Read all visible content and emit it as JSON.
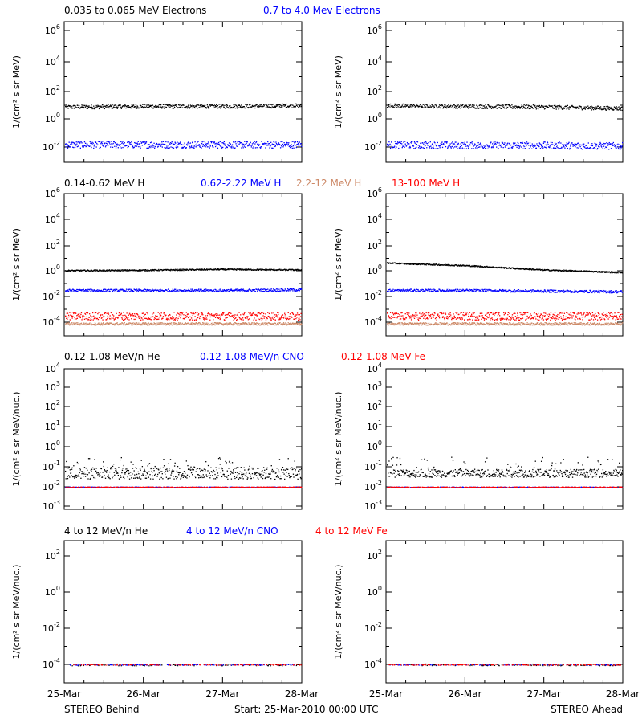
{
  "colors": {
    "black": "#000000",
    "blue": "#0000ff",
    "tan": "#cc8866",
    "red": "#ff0000"
  },
  "footer": {
    "left": "STEREO Behind",
    "center": "Start: 25-Mar-2010 00:00 UTC",
    "right": "STEREO Ahead"
  },
  "xaxis": {
    "ticks": [
      "25-Mar",
      "26-Mar",
      "27-Mar",
      "28-Mar"
    ]
  },
  "rows": [
    {
      "id": "electrons",
      "ylabel": "1/(cm² s sr MeV)",
      "titles": [
        {
          "text": "0.035 to 0.065 MeV Electrons",
          "color": "black"
        },
        {
          "text": "0.7 to 4.0 Mev Electrons",
          "color": "blue"
        }
      ],
      "yticks": [
        {
          "base": "10",
          "exp": "6",
          "v": 6
        },
        {
          "base": "10",
          "exp": "4",
          "v": 4
        },
        {
          "base": "10",
          "exp": "2",
          "v": 2
        },
        {
          "base": "10",
          "exp": "0",
          "v": 0
        },
        {
          "base": "10",
          "exp": "-2",
          "v": -2
        }
      ]
    },
    {
      "id": "protons",
      "ylabel": "1/(cm² s sr MeV)",
      "titles": [
        {
          "text": "0.14-0.62 MeV H",
          "color": "black"
        },
        {
          "text": "0.62-2.22 MeV H",
          "color": "blue"
        },
        {
          "text": "2.2-12 MeV H",
          "color": "tan"
        },
        {
          "text": "13-100 MeV H",
          "color": "red"
        }
      ],
      "yticks": [
        {
          "base": "10",
          "exp": "6",
          "v": 6
        },
        {
          "base": "10",
          "exp": "4",
          "v": 4
        },
        {
          "base": "10",
          "exp": "2",
          "v": 2
        },
        {
          "base": "10",
          "exp": "0",
          "v": 0
        },
        {
          "base": "10",
          "exp": "-2",
          "v": -2
        },
        {
          "base": "10",
          "exp": "-4",
          "v": -4
        }
      ]
    },
    {
      "id": "heavy_low",
      "ylabel": "1/(cm² s sr MeV/nuc.)",
      "titles": [
        {
          "text": "0.12-1.08 MeV/n He",
          "color": "black"
        },
        {
          "text": "0.12-1.08 MeV/n CNO",
          "color": "blue"
        },
        {
          "text": "0.12-1.08 MeV Fe",
          "color": "red"
        }
      ],
      "yticks": [
        {
          "base": "10",
          "exp": "4",
          "v": 4
        },
        {
          "base": "10",
          "exp": "3",
          "v": 3
        },
        {
          "base": "10",
          "exp": "2",
          "v": 2
        },
        {
          "base": "10",
          "exp": "1",
          "v": 1
        },
        {
          "base": "10",
          "exp": "0",
          "v": 0
        },
        {
          "base": "10",
          "exp": "-1",
          "v": -1
        },
        {
          "base": "10",
          "exp": "-2",
          "v": -2
        },
        {
          "base": "10",
          "exp": "-3",
          "v": -3
        }
      ]
    },
    {
      "id": "heavy_high",
      "ylabel": "1/(cm² s sr MeV/nuc.)",
      "titles": [
        {
          "text": "4 to 12 MeV/n He",
          "color": "black"
        },
        {
          "text": "4 to 12 MeV/n CNO",
          "color": "blue"
        },
        {
          "text": "4 to 12 MeV Fe",
          "color": "red"
        }
      ],
      "yticks": [
        {
          "base": "10",
          "exp": "2",
          "v": 2
        },
        {
          "base": "10",
          "exp": "0",
          "v": 0
        },
        {
          "base": "10",
          "exp": "-2",
          "v": -2
        },
        {
          "base": "10",
          "exp": "-4",
          "v": -4
        }
      ]
    }
  ],
  "chart_data": [
    {
      "type": "scatter",
      "panel": "electrons-behind",
      "yscale": "log",
      "ylim_log10": [
        -3,
        7
      ],
      "xlim": [
        "25-Mar",
        "28-Mar"
      ],
      "series": [
        {
          "name": "0.035 to 0.065 MeV Electrons",
          "color": "black",
          "log10_level": [
            0.9,
            0.95,
            0.95,
            1.0
          ],
          "spread": 0.15
        },
        {
          "name": "0.7 to 4.0 Mev Electrons",
          "color": "blue",
          "log10_level": [
            -1.8,
            -1.8,
            -1.8,
            -1.8
          ],
          "spread": 0.25
        }
      ]
    },
    {
      "type": "scatter",
      "panel": "electrons-ahead",
      "yscale": "log",
      "ylim_log10": [
        -3,
        7
      ],
      "xlim": [
        "25-Mar",
        "28-Mar"
      ],
      "series": [
        {
          "name": "0.035 to 0.065 MeV Electrons",
          "color": "black",
          "log10_level": [
            1.0,
            0.95,
            0.9,
            0.8
          ],
          "spread": 0.15
        },
        {
          "name": "0.7 to 4.0 Mev Electrons",
          "color": "blue",
          "log10_level": [
            -1.8,
            -1.85,
            -1.85,
            -1.9
          ],
          "spread": 0.25
        }
      ]
    },
    {
      "type": "scatter",
      "panel": "protons-behind",
      "yscale": "log",
      "ylim_log10": [
        -5,
        6
      ],
      "xlim": [
        "25-Mar",
        "28-Mar"
      ],
      "series": [
        {
          "name": "0.14-0.62 MeV H",
          "color": "black",
          "log10_level": [
            0.05,
            0.08,
            0.15,
            0.1
          ],
          "spread": 0.05
        },
        {
          "name": "0.62-2.22 MeV H",
          "color": "blue",
          "log10_level": [
            -1.5,
            -1.5,
            -1.5,
            -1.45
          ],
          "spread": 0.1
        },
        {
          "name": "2.2-12 MeV H",
          "color": "tan",
          "log10_level": [
            -4.1,
            -4.1,
            -4.1,
            -4.1
          ],
          "spread": 0.1
        },
        {
          "name": "13-100 MeV H",
          "color": "red",
          "log10_level": [
            -3.5,
            -3.5,
            -3.5,
            -3.5
          ],
          "spread": 0.3
        }
      ]
    },
    {
      "type": "scatter",
      "panel": "protons-ahead",
      "yscale": "log",
      "ylim_log10": [
        -5,
        6
      ],
      "xlim": [
        "25-Mar",
        "28-Mar"
      ],
      "series": [
        {
          "name": "0.14-0.62 MeV H",
          "color": "black",
          "log10_level": [
            0.65,
            0.45,
            0.1,
            -0.1
          ],
          "spread": 0.05
        },
        {
          "name": "0.62-2.22 MeV H",
          "color": "blue",
          "log10_level": [
            -1.5,
            -1.5,
            -1.55,
            -1.6
          ],
          "spread": 0.1
        },
        {
          "name": "2.2-12 MeV H",
          "color": "tan",
          "log10_level": [
            -4.1,
            -4.1,
            -4.1,
            -4.1
          ],
          "spread": 0.1
        },
        {
          "name": "13-100 MeV H",
          "color": "red",
          "log10_level": [
            -3.5,
            -3.5,
            -3.5,
            -3.5
          ],
          "spread": 0.3
        }
      ]
    },
    {
      "type": "scatter",
      "panel": "heavy-low-behind",
      "yscale": "log",
      "ylim_log10": [
        -3.5,
        4
      ],
      "xlim": [
        "25-Mar",
        "28-Mar"
      ],
      "series": [
        {
          "name": "0.12-1.08 MeV/n He",
          "color": "black",
          "log10_level": [
            -1.3,
            -1.3,
            -1.3,
            -1.3
          ],
          "spread": 0.3
        },
        {
          "name": "0.12-1.08 MeV/n CNO",
          "color": "blue",
          "log10_level": [
            -2.0,
            -2.0,
            -2.0,
            -2.0
          ],
          "spread": 0.02
        },
        {
          "name": "0.12-1.08 MeV Fe",
          "color": "red",
          "log10_level": [
            -2.0,
            -2.0,
            -2.0,
            -2.0
          ],
          "spread": 0.02
        }
      ]
    },
    {
      "type": "scatter",
      "panel": "heavy-low-ahead",
      "yscale": "log",
      "ylim_log10": [
        -3.5,
        4
      ],
      "xlim": [
        "25-Mar",
        "28-Mar"
      ],
      "series": [
        {
          "name": "0.12-1.08 MeV/n He",
          "color": "black",
          "log10_level": [
            -1.3,
            -1.3,
            -1.3,
            -1.3
          ],
          "spread": 0.2
        },
        {
          "name": "0.12-1.08 MeV/n CNO",
          "color": "blue",
          "log10_level": [
            -2.0,
            -2.0,
            -2.0,
            -2.0
          ],
          "spread": 0.02
        },
        {
          "name": "0.12-1.08 MeV Fe",
          "color": "red",
          "log10_level": [
            -2.0,
            -2.0,
            -2.0,
            -2.0
          ],
          "spread": 0.02
        }
      ]
    },
    {
      "type": "scatter",
      "panel": "heavy-high-behind",
      "yscale": "log",
      "ylim_log10": [
        -5,
        3.5
      ],
      "xlim": [
        "25-Mar",
        "28-Mar"
      ],
      "series": [
        {
          "name": "4 to 12 MeV/n He",
          "color": "black",
          "log10_level": [
            -4.0,
            -4.0,
            -4.0,
            -4.0
          ],
          "spread": 0.05
        },
        {
          "name": "4 to 12 MeV/n CNO",
          "color": "blue",
          "log10_level": [
            -4.0,
            -4.0,
            -4.0,
            -4.0
          ],
          "spread": 0.02
        },
        {
          "name": "4 to 12 MeV Fe",
          "color": "red",
          "log10_level": [
            -4.0,
            -4.0,
            -4.0,
            -4.0
          ],
          "spread": 0.02
        }
      ]
    },
    {
      "type": "scatter",
      "panel": "heavy-high-ahead",
      "yscale": "log",
      "ylim_log10": [
        -5,
        3.5
      ],
      "xlim": [
        "25-Mar",
        "28-Mar"
      ],
      "series": [
        {
          "name": "4 to 12 MeV/n He",
          "color": "black",
          "log10_level": [
            -4.0,
            -4.0,
            -4.0,
            -4.0
          ],
          "spread": 0.05
        },
        {
          "name": "4 to 12 MeV/n CNO",
          "color": "blue",
          "log10_level": [
            -4.0,
            -4.0,
            -4.0,
            -4.0
          ],
          "spread": 0.02
        },
        {
          "name": "4 to 12 MeV Fe",
          "color": "red",
          "log10_level": [
            -4.0,
            -4.0,
            -4.0,
            -4.0
          ],
          "spread": 0.02
        }
      ]
    }
  ]
}
